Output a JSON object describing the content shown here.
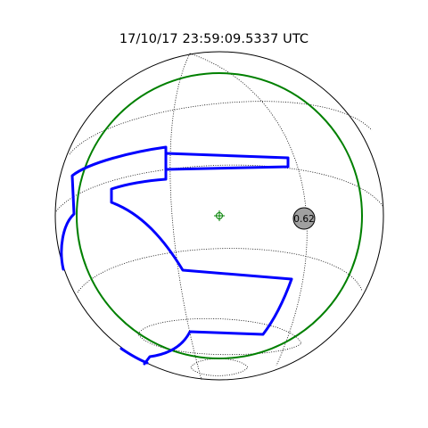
{
  "header": {
    "timestamp": "17/10/17 23:59:09.5337 UTC"
  },
  "plot": {
    "colors": {
      "sphere_outline": "#000000",
      "graticule": "#000000",
      "fov_circle": "#008000",
      "region_outline": "#0000ff",
      "source_fill": "#a0a0a0"
    },
    "source": {
      "label": "0.62"
    },
    "icons": {
      "center_marker": "crosshair-circle-icon"
    }
  }
}
